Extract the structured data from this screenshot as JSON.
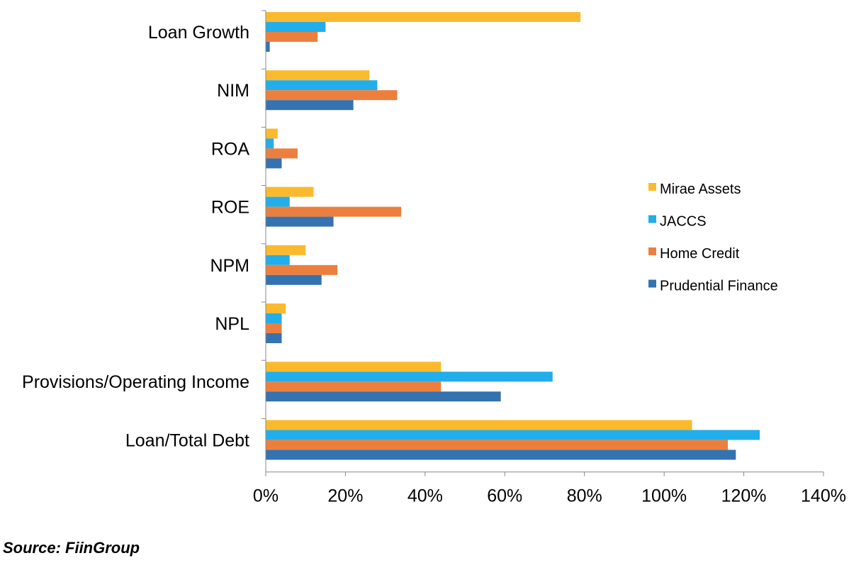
{
  "source_label": "Source: FiinGroup",
  "chart_data": {
    "type": "bar",
    "orientation": "horizontal",
    "categories": [
      "Loan Growth",
      "NIM",
      "ROA",
      "ROE",
      "NPM",
      "NPL",
      "Provisions/Operating Income",
      "Loan/Total Debt"
    ],
    "series": [
      {
        "name": "Mirae Assets",
        "color": "#FBBA2D",
        "values": [
          79,
          26,
          3,
          12,
          10,
          5,
          44,
          107
        ]
      },
      {
        "name": "JACCS",
        "color": "#22AEEA",
        "values": [
          15,
          28,
          2,
          6,
          6,
          4,
          72,
          124
        ]
      },
      {
        "name": "Home Credit",
        "color": "#EC7F3E",
        "values": [
          13,
          33,
          8,
          34,
          18,
          4,
          44,
          116
        ]
      },
      {
        "name": "Prudential Finance",
        "color": "#3572B0",
        "values": [
          1,
          22,
          4,
          17,
          14,
          4,
          59,
          118
        ]
      }
    ],
    "xlim": [
      0,
      140
    ],
    "xticks": [
      "0%",
      "20%",
      "40%",
      "60%",
      "80%",
      "100%",
      "120%",
      "140%"
    ],
    "legend_position": "right",
    "grid": false
  }
}
